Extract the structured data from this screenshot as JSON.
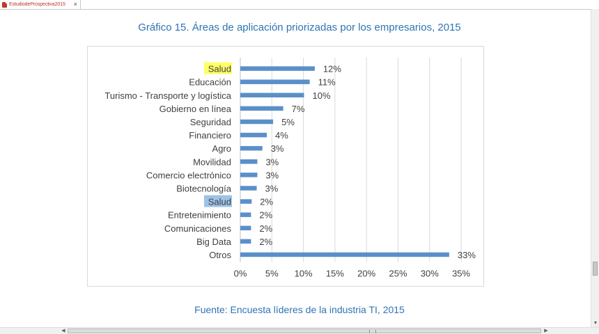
{
  "tab": {
    "title": "EstudiodeProspectiva2015",
    "close_symbol": "×"
  },
  "page": {
    "title": "Gráfico 15. Áreas de aplicación priorizadas por los empresarios, 2015",
    "source": "Fuente: Encuesta líderes de la industria TI, 2015"
  },
  "colors": {
    "bar": "#5b8fc9",
    "grid": "#d9d9d9",
    "title": "#2e74b5",
    "highlight_yellow": "#ffff66",
    "highlight_blue": "#9dc3e6"
  },
  "chart_data": {
    "type": "bar",
    "orientation": "horizontal",
    "title": "",
    "xlabel": "",
    "ylabel": "",
    "categories": [
      "Salud",
      "Educación",
      "Turismo - Transporte y logística",
      "Gobierno en línea",
      "Seguridad",
      "Financiero",
      "Agro",
      "Movilidad",
      "Comercio electrónico",
      "Biotecnología",
      "Salud",
      "Entretenimiento",
      "Comunicaciones",
      "Big Data",
      "Otros"
    ],
    "values": [
      12,
      11,
      10,
      7,
      5,
      4,
      3,
      3,
      3,
      3,
      2,
      2,
      2,
      2,
      33
    ],
    "bar_lengths": [
      11.8,
      11,
      10.1,
      6.8,
      5.2,
      4.2,
      3.5,
      2.7,
      2.7,
      2.6,
      1.8,
      1.7,
      1.7,
      1.7,
      33.1
    ],
    "value_labels": [
      "12%",
      "11%",
      "10%",
      "7%",
      "5%",
      "4%",
      "3%",
      "3%",
      "3%",
      "3%",
      "2%",
      "2%",
      "2%",
      "2%",
      "33%"
    ],
    "highlights": [
      {
        "index": 0,
        "color": "yellow"
      },
      {
        "index": 10,
        "color": "blue"
      }
    ],
    "xlim": [
      0,
      35
    ],
    "x_ticks": [
      0,
      5,
      10,
      15,
      20,
      25,
      30,
      35
    ],
    "x_tick_labels": [
      "0%",
      "5%",
      "10%",
      "15%",
      "20%",
      "25%",
      "30%",
      "35%"
    ],
    "grid": "vertical",
    "legend": "none"
  },
  "scrollbars": {
    "up_arrow": "▲",
    "down_arrow": "▼",
    "left_arrow": "◀",
    "right_arrow": "▶"
  }
}
